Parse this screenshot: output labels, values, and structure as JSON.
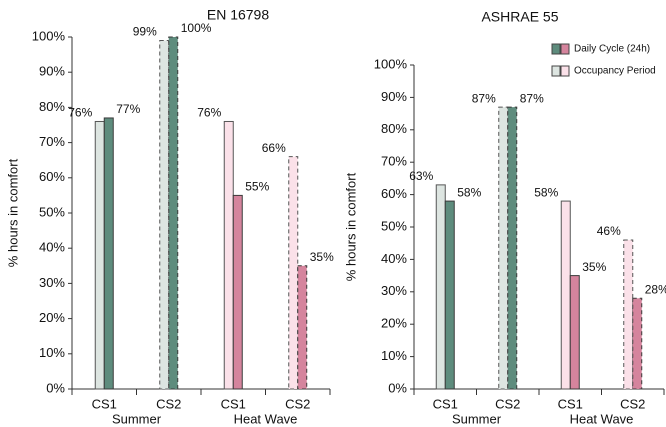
{
  "chart_data": [
    {
      "type": "bar",
      "title": "EN 16798",
      "ylabel": "% hours in comfort",
      "categories": [
        "CS1",
        "CS2",
        "CS1",
        "CS2"
      ],
      "groups": [
        {
          "label": "Summer",
          "size": 2
        },
        {
          "label": "Heat Wave",
          "size": 2
        }
      ],
      "dashed": [
        false,
        true,
        false,
        true
      ],
      "series": [
        {
          "colors": [
            "#dde5e1",
            "#dde5e1",
            "#fbe1e9",
            "#fbe1e9"
          ],
          "values": [
            76,
            99,
            76,
            66
          ],
          "value_labels": [
            "76%",
            "99%",
            "76%",
            "66%"
          ]
        },
        {
          "colors": [
            "#5e8c7d",
            "#5e8c7d",
            "#d5849d",
            "#d5849d"
          ],
          "values": [
            77,
            100,
            55,
            35
          ],
          "value_labels": [
            "77%",
            "100%",
            "55%",
            "35%"
          ]
        }
      ],
      "ylim": [
        0,
        100
      ],
      "yticks": [
        {
          "value": 0,
          "label": "0%"
        },
        {
          "value": 10,
          "label": "10%"
        },
        {
          "value": 20,
          "label": "20%"
        },
        {
          "value": 30,
          "label": "30%"
        },
        {
          "value": 40,
          "label": "40%"
        },
        {
          "value": 50,
          "label": "50%"
        },
        {
          "value": 60,
          "label": "60%"
        },
        {
          "value": 70,
          "label": "70%"
        },
        {
          "value": 80,
          "label": "80%"
        },
        {
          "value": 90,
          "label": "90%"
        },
        {
          "value": 100,
          "label": "100%"
        }
      ]
    },
    {
      "type": "bar",
      "title": "ASHRAE 55",
      "ylabel": "% hours in comfort",
      "categories": [
        "CS1",
        "CS2",
        "CS1",
        "CS2"
      ],
      "groups": [
        {
          "label": "Summer",
          "size": 2
        },
        {
          "label": "Heat Wave",
          "size": 2
        }
      ],
      "dashed": [
        false,
        true,
        false,
        true
      ],
      "legend": "top-right",
      "series": [
        {
          "name": "Occupancy Period",
          "colors": [
            "#dde5e1",
            "#dde5e1",
            "#fbe1e9",
            "#fbe1e9"
          ],
          "values": [
            63,
            87,
            58,
            46
          ],
          "value_labels": [
            "63%",
            "87%",
            "58%",
            "46%"
          ]
        },
        {
          "name": "Daily Cycle (24h)",
          "colors": [
            "#5e8c7d",
            "#5e8c7d",
            "#d5849d",
            "#d5849d"
          ],
          "values": [
            58,
            87,
            35,
            28
          ],
          "value_labels": [
            "58%",
            "87%",
            "35%",
            "28%"
          ]
        }
      ],
      "ylim": [
        0,
        100
      ],
      "yticks": [
        {
          "value": 0,
          "label": "0%"
        },
        {
          "value": 10,
          "label": "10%"
        },
        {
          "value": 20,
          "label": "20%"
        },
        {
          "value": 30,
          "label": "30%"
        },
        {
          "value": 40,
          "label": "40%"
        },
        {
          "value": 50,
          "label": "50%"
        },
        {
          "value": 60,
          "label": "60%"
        },
        {
          "value": 70,
          "label": "70%"
        },
        {
          "value": 80,
          "label": "80%"
        },
        {
          "value": 90,
          "label": "90%"
        },
        {
          "value": 100,
          "label": "100%"
        }
      ]
    }
  ]
}
